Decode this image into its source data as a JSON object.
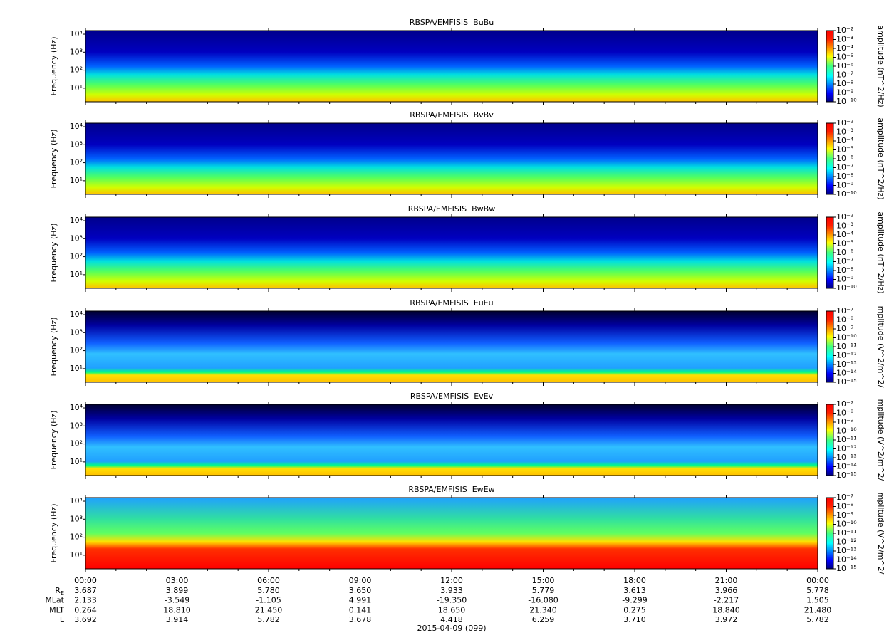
{
  "chart_data": [
    {
      "type": "spectrogram",
      "title": "RBSPA/EMFISIS  BuBu",
      "y_label": "Frequency (Hz)",
      "log_y": true,
      "ylim": [
        1.75,
        15800
      ],
      "yticks": [
        {
          "value": 10,
          "label": "10¹"
        },
        {
          "value": 100,
          "label": "10²"
        },
        {
          "value": 1000,
          "label": "10³"
        },
        {
          "value": 10000,
          "label": "10⁴"
        }
      ],
      "colorbar_label": "amplitude (nT^2/Hz)",
      "clim": [
        1e-10,
        0.01
      ],
      "cticks": [
        {
          "value": 0.01,
          "label": "10⁻²"
        },
        {
          "value": 0.001,
          "label": "10⁻³"
        },
        {
          "value": 0.0001,
          "label": "10⁻⁴"
        },
        {
          "value": 1e-05,
          "label": "10⁻⁵"
        },
        {
          "value": 1e-06,
          "label": "10⁻⁶"
        },
        {
          "value": 1e-07,
          "label": "10⁻⁷"
        },
        {
          "value": 1e-08,
          "label": "10⁻⁸"
        },
        {
          "value": 1e-09,
          "label": "10⁻⁹"
        },
        {
          "value": 1e-10,
          "label": "10⁻¹⁰"
        }
      ]
    },
    {
      "type": "spectrogram",
      "title": "RBSPA/EMFISIS  BvBv",
      "y_label": "Frequency (Hz)",
      "log_y": true,
      "ylim": [
        1.75,
        15800
      ],
      "yticks": [
        {
          "value": 10,
          "label": "10¹"
        },
        {
          "value": 100,
          "label": "10²"
        },
        {
          "value": 1000,
          "label": "10³"
        },
        {
          "value": 10000,
          "label": "10⁴"
        }
      ],
      "colorbar_label": "amplitude (nT^2/Hz)",
      "clim": [
        1e-10,
        0.01
      ],
      "cticks": [
        {
          "value": 0.01,
          "label": "10⁻²"
        },
        {
          "value": 0.001,
          "label": "10⁻³"
        },
        {
          "value": 0.0001,
          "label": "10⁻⁴"
        },
        {
          "value": 1e-05,
          "label": "10⁻⁵"
        },
        {
          "value": 1e-06,
          "label": "10⁻⁶"
        },
        {
          "value": 1e-07,
          "label": "10⁻⁷"
        },
        {
          "value": 1e-08,
          "label": "10⁻⁸"
        },
        {
          "value": 1e-09,
          "label": "10⁻⁹"
        },
        {
          "value": 1e-10,
          "label": "10⁻¹⁰"
        }
      ]
    },
    {
      "type": "spectrogram",
      "title": "RBSPA/EMFISIS  BwBw",
      "y_label": "Frequency (Hz)",
      "log_y": true,
      "ylim": [
        1.75,
        15800
      ],
      "yticks": [
        {
          "value": 10,
          "label": "10¹"
        },
        {
          "value": 100,
          "label": "10²"
        },
        {
          "value": 1000,
          "label": "10³"
        },
        {
          "value": 10000,
          "label": "10⁴"
        }
      ],
      "colorbar_label": "amplitude (nT^2/Hz)",
      "clim": [
        1e-10,
        0.01
      ],
      "cticks": [
        {
          "value": 0.01,
          "label": "10⁻²"
        },
        {
          "value": 0.001,
          "label": "10⁻³"
        },
        {
          "value": 0.0001,
          "label": "10⁻⁴"
        },
        {
          "value": 1e-05,
          "label": "10⁻⁵"
        },
        {
          "value": 1e-06,
          "label": "10⁻⁶"
        },
        {
          "value": 1e-07,
          "label": "10⁻⁷"
        },
        {
          "value": 1e-08,
          "label": "10⁻⁸"
        },
        {
          "value": 1e-09,
          "label": "10⁻⁹"
        },
        {
          "value": 1e-10,
          "label": "10⁻¹⁰"
        }
      ]
    },
    {
      "type": "spectrogram",
      "title": "RBSPA/EMFISIS  EuEu",
      "y_label": "Frequency (Hz)",
      "log_y": true,
      "ylim": [
        1.75,
        15800
      ],
      "yticks": [
        {
          "value": 10,
          "label": "10¹"
        },
        {
          "value": 100,
          "label": "10²"
        },
        {
          "value": 1000,
          "label": "10³"
        },
        {
          "value": 10000,
          "label": "10⁴"
        }
      ],
      "colorbar_label": "mplitude (V^2/m^2/",
      "clim": [
        1e-15,
        1e-07
      ],
      "cticks": [
        {
          "value": 1e-07,
          "label": "10⁻⁷"
        },
        {
          "value": 1e-08,
          "label": "10⁻⁸"
        },
        {
          "value": 1e-09,
          "label": "10⁻⁹"
        },
        {
          "value": 1e-10,
          "label": "10⁻¹⁰"
        },
        {
          "value": 1e-11,
          "label": "10⁻¹¹"
        },
        {
          "value": 1e-12,
          "label": "10⁻¹²"
        },
        {
          "value": 1e-13,
          "label": "10⁻¹³"
        },
        {
          "value": 1e-14,
          "label": "10⁻¹⁴"
        },
        {
          "value": 1e-15,
          "label": "10⁻¹⁵"
        }
      ]
    },
    {
      "type": "spectrogram",
      "title": "RBSPA/EMFISIS  EvEv",
      "y_label": "Frequency (Hz)",
      "log_y": true,
      "ylim": [
        1.75,
        15800
      ],
      "yticks": [
        {
          "value": 10,
          "label": "10¹"
        },
        {
          "value": 100,
          "label": "10²"
        },
        {
          "value": 1000,
          "label": "10³"
        },
        {
          "value": 10000,
          "label": "10⁴"
        }
      ],
      "colorbar_label": "mplitude (V^2/m^2/",
      "clim": [
        1e-15,
        1e-07
      ],
      "cticks": [
        {
          "value": 1e-07,
          "label": "10⁻⁷"
        },
        {
          "value": 1e-08,
          "label": "10⁻⁸"
        },
        {
          "value": 1e-09,
          "label": "10⁻⁹"
        },
        {
          "value": 1e-10,
          "label": "10⁻¹⁰"
        },
        {
          "value": 1e-11,
          "label": "10⁻¹¹"
        },
        {
          "value": 1e-12,
          "label": "10⁻¹²"
        },
        {
          "value": 1e-13,
          "label": "10⁻¹³"
        },
        {
          "value": 1e-14,
          "label": "10⁻¹⁴"
        },
        {
          "value": 1e-15,
          "label": "10⁻¹⁵"
        }
      ]
    },
    {
      "type": "spectrogram",
      "title": "RBSPA/EMFISIS  EwEw",
      "y_label": "Frequency (Hz)",
      "log_y": true,
      "ylim": [
        1.75,
        15800
      ],
      "yticks": [
        {
          "value": 10,
          "label": "10¹"
        },
        {
          "value": 100,
          "label": "10²"
        },
        {
          "value": 1000,
          "label": "10³"
        },
        {
          "value": 10000,
          "label": "10⁴"
        }
      ],
      "colorbar_label": "mplitude (V^2/m^2/",
      "clim": [
        1e-15,
        1e-07
      ],
      "cticks": [
        {
          "value": 1e-07,
          "label": "10⁻⁷"
        },
        {
          "value": 1e-08,
          "label": "10⁻⁸"
        },
        {
          "value": 1e-09,
          "label": "10⁻⁹"
        },
        {
          "value": 1e-10,
          "label": "10⁻¹⁰"
        },
        {
          "value": 1e-11,
          "label": "10⁻¹¹"
        },
        {
          "value": 1e-12,
          "label": "10⁻¹²"
        },
        {
          "value": 1e-13,
          "label": "10⁻¹³"
        },
        {
          "value": 1e-14,
          "label": "10⁻¹⁴"
        },
        {
          "value": 1e-15,
          "label": "10⁻¹⁵"
        }
      ],
      "xlim": [
        0,
        24
      ],
      "xticks": [
        {
          "value": 0,
          "label": "00:00"
        },
        {
          "value": 3,
          "label": "03:00"
        },
        {
          "value": 6,
          "label": "06:00"
        },
        {
          "value": 9,
          "label": "09:00"
        },
        {
          "value": 12,
          "label": "12:00"
        },
        {
          "value": 15,
          "label": "15:00"
        },
        {
          "value": 18,
          "label": "18:00"
        },
        {
          "value": 21,
          "label": "21:00"
        },
        {
          "value": 24,
          "label": "00:00"
        }
      ]
    }
  ],
  "ephemeris": [
    {
      "label": "R",
      "subscript": "E",
      "values": [
        "3.687",
        "3.899",
        "5.780",
        "3.650",
        "3.933",
        "5.779",
        "3.613",
        "3.966",
        "5.778"
      ]
    },
    {
      "label": "MLat",
      "values": [
        "2.133",
        "-3.549",
        "-1.105",
        "4.991",
        "-19.350",
        "-16.080",
        "-9.299",
        "-2.217",
        "1.505"
      ]
    },
    {
      "label": "MLT",
      "values": [
        "0.264",
        "18.810",
        "21.450",
        "0.141",
        "18.650",
        "21.340",
        "0.275",
        "18.840",
        "21.480"
      ]
    },
    {
      "label": "L",
      "values": [
        "3.692",
        "3.914",
        "5.782",
        "3.678",
        "4.418",
        "6.259",
        "3.710",
        "3.972",
        "5.782"
      ]
    }
  ],
  "date": "2015-04-09 (099)"
}
